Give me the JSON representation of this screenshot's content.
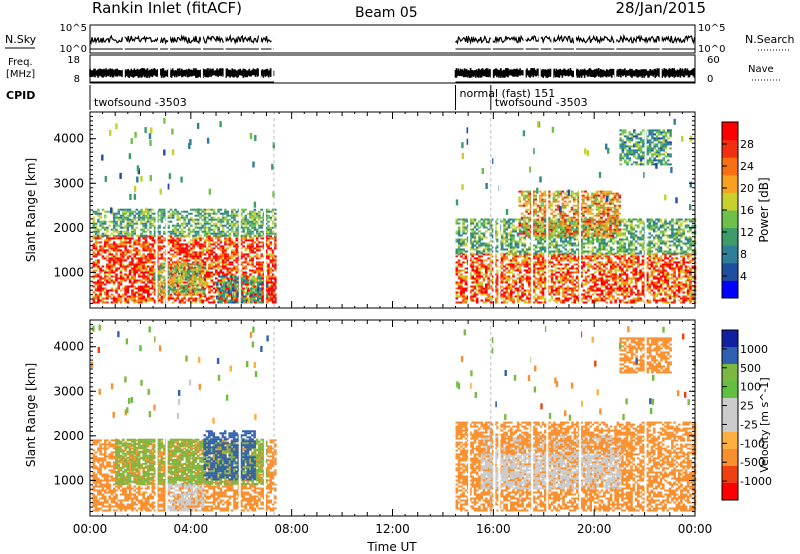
{
  "header": {
    "station": "Rankin Inlet (fitACF)",
    "beam": "Beam 05",
    "date": "28/Jan/2015"
  },
  "aux": {
    "nsky_label": "N.Sky",
    "nsearch_label": "N.Search",
    "freq_label": "Freq.",
    "freq_unit": "[MHz]",
    "nave_label": "Nave",
    "cpid_label": "CPID",
    "nsky_ticks": [
      "10^5",
      "10^0"
    ],
    "nsearch_ticks": [
      "10^5",
      "10^0"
    ],
    "freq_ticks": [
      "18",
      "8"
    ],
    "nave_ticks": [
      "60",
      "0"
    ],
    "cpid_segments": [
      {
        "label": "twofsound -3503",
        "start_h": 0.0,
        "end_h": 7.3
      },
      {
        "label": "normal (fast) 151",
        "start_h": 14.5,
        "end_h": 15.9
      },
      {
        "label": "twofsound -3503",
        "start_h": 15.9,
        "end_h": 24.0
      }
    ],
    "data_blocks_h": [
      [
        0.0,
        7.3
      ],
      [
        14.5,
        24.0
      ]
    ]
  },
  "colors": {
    "power_scale": [
      "#0000ff",
      "#1e4e9e",
      "#2e7e9a",
      "#3c9c6a",
      "#6fc04a",
      "#c8d030",
      "#f8a020",
      "#f87010",
      "#f03010",
      "#ff0000"
    ],
    "velocity_scale": [
      "#ff0000",
      "#f04010",
      "#f89030",
      "#fbb040",
      "#cccccc",
      "#cccccc",
      "#60c040",
      "#7ab840",
      "#3060b0",
      "#1020a0"
    ]
  },
  "chart_data": [
    {
      "type": "heatmap",
      "name": "power",
      "xlabel": "",
      "ylabel": "Slant Range [km]",
      "xlim_hours": [
        0,
        24
      ],
      "ylim": [
        200,
        4600
      ],
      "yticks": [
        1000,
        2000,
        3000,
        4000
      ],
      "colorbar": {
        "label": "Power [dB]",
        "ticks": [
          "4",
          "8",
          "12",
          "16",
          "20",
          "24",
          "28"
        ],
        "range": [
          0,
          30
        ]
      },
      "echo_regions": [
        {
          "t0": 0.1,
          "t1": 7.3,
          "r0": 300,
          "r1": 1800,
          "level": 26
        },
        {
          "t0": 0.1,
          "t1": 7.3,
          "r0": 1800,
          "r1": 2400,
          "level": 12
        },
        {
          "t0": 2.5,
          "t1": 4.5,
          "r0": 500,
          "r1": 1200,
          "level": 14
        },
        {
          "t0": 5.0,
          "t1": 7.0,
          "r0": 300,
          "r1": 900,
          "level": 10
        },
        {
          "t0": 6.8,
          "t1": 7.3,
          "r0": 300,
          "r1": 900,
          "level": 28
        },
        {
          "t0": 14.5,
          "t1": 24.0,
          "r0": 300,
          "r1": 1400,
          "level": 24
        },
        {
          "t0": 14.5,
          "t1": 24.0,
          "r0": 1400,
          "r1": 2200,
          "level": 12
        },
        {
          "t0": 17.0,
          "t1": 21.0,
          "r0": 1800,
          "r1": 2800,
          "level": 20
        },
        {
          "t0": 21.0,
          "t1": 23.0,
          "r0": 3400,
          "r1": 4200,
          "level": 10
        }
      ]
    },
    {
      "type": "heatmap",
      "name": "velocity",
      "xlabel": "Time UT",
      "ylabel": "Slant Range [km]",
      "xticks": [
        "00:00",
        "04:00",
        "08:00",
        "12:00",
        "16:00",
        "20:00",
        "00:00"
      ],
      "xlim_hours": [
        0,
        24
      ],
      "ylim": [
        200,
        4600
      ],
      "yticks": [
        1000,
        2000,
        3000,
        4000
      ],
      "colorbar": {
        "label": "Velocity [m s^-1]",
        "ticks": [
          "1000",
          "500",
          "100",
          "25",
          "-25",
          "-100",
          "-500",
          "-1000"
        ],
        "range": [
          -1200,
          1200
        ]
      },
      "echo_regions": [
        {
          "t0": 0.1,
          "t1": 7.3,
          "r0": 300,
          "r1": 1900,
          "level": -250
        },
        {
          "t0": 1.0,
          "t1": 7.0,
          "r0": 900,
          "r1": 1900,
          "level": 300
        },
        {
          "t0": 4.5,
          "t1": 6.5,
          "r0": 1000,
          "r1": 2100,
          "level": 800
        },
        {
          "t0": 3.0,
          "t1": 4.5,
          "r0": 300,
          "r1": 900,
          "level": 0
        },
        {
          "t0": 14.5,
          "t1": 24.0,
          "r0": 300,
          "r1": 1600,
          "level": -300
        },
        {
          "t0": 15.5,
          "t1": 21.0,
          "r0": 800,
          "r1": 2000,
          "level": 0
        },
        {
          "t0": 14.5,
          "t1": 24.0,
          "r0": 1600,
          "r1": 2300,
          "level": -150
        },
        {
          "t0": 21.0,
          "t1": 23.0,
          "r0": 3400,
          "r1": 4200,
          "level": -200
        }
      ]
    }
  ]
}
